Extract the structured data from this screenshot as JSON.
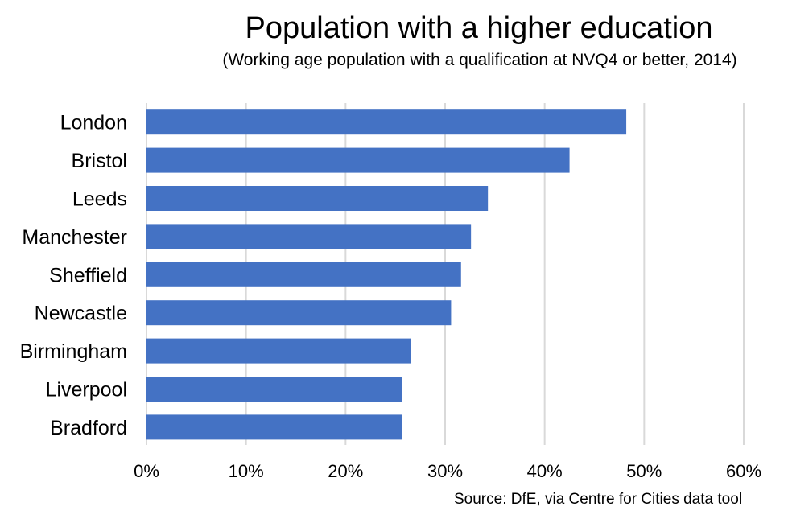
{
  "chart_data": {
    "type": "bar",
    "orientation": "horizontal",
    "title": "Population with a higher education",
    "subtitle": "(Working age population with a qualification at NVQ4 or better, 2014)",
    "source": "Source: DfE, via Centre for Cities data tool",
    "categories": [
      "London",
      "Bristol",
      "Leeds",
      "Manchester",
      "Sheffield",
      "Newcastle",
      "Birmingham",
      "Liverpool",
      "Bradford"
    ],
    "values": [
      48.2,
      42.5,
      34.3,
      32.6,
      31.6,
      30.6,
      26.6,
      25.7,
      25.7
    ],
    "xlim": [
      0,
      60
    ],
    "xticks": [
      0,
      10,
      20,
      30,
      40,
      50,
      60
    ],
    "xtick_labels": [
      "0%",
      "10%",
      "20%",
      "30%",
      "40%",
      "50%",
      "60%"
    ],
    "grid": "vertical",
    "bar_color": "#4472c4",
    "grid_color": "#d9d9d9"
  }
}
